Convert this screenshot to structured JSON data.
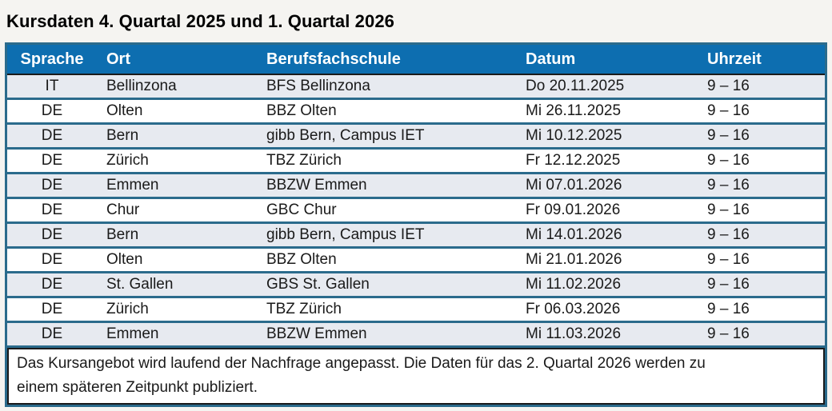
{
  "title": "Kursdaten 4. Quartal 2025 und 1. Quartal 2026",
  "table": {
    "columns": [
      "Sprache",
      "Ort",
      "Berufsfachschule",
      "Datum",
      "Uhrzeit"
    ],
    "rows": [
      [
        "IT",
        "Bellinzona",
        "BFS Bellinzona",
        "Do 20.11.2025",
        "9 – 16"
      ],
      [
        "DE",
        "Olten",
        "BBZ Olten",
        "Mi 26.11.2025",
        "9 – 16"
      ],
      [
        "DE",
        "Bern",
        "gibb Bern, Campus IET",
        "Mi 10.12.2025",
        "9 – 16"
      ],
      [
        "DE",
        "Zürich",
        "TBZ Zürich",
        "Fr 12.12.2025",
        "9 – 16"
      ],
      [
        "DE",
        "Emmen",
        "BBZW Emmen",
        "Mi 07.01.2026",
        "9 – 16"
      ],
      [
        "DE",
        "Chur",
        "GBC Chur",
        "Fr 09.01.2026",
        "9 – 16"
      ],
      [
        "DE",
        "Bern",
        "gibb Bern, Campus IET",
        "Mi 14.01.2026",
        "9 – 16"
      ],
      [
        "DE",
        "Olten",
        "BBZ Olten",
        "Mi 21.01.2026",
        "9 – 16"
      ],
      [
        "DE",
        "St. Gallen",
        "GBS St. Gallen",
        "Mi 11.02.2026",
        "9 – 16"
      ],
      [
        "DE",
        "Zürich",
        "TBZ Zürich",
        "Fr 06.03.2026",
        "9 – 16"
      ],
      [
        "DE",
        "Emmen",
        "BBZW Emmen",
        "Mi 11.03.2026",
        "9 – 16"
      ]
    ],
    "footnote_line1": "Das Kursangebot wird laufend der Nachfrage angepasst. Die Daten für das 2. Quartal 2026 werden zu",
    "footnote_line2": "einem späteren Zeitpunkt publiziert."
  },
  "colors": {
    "header_bg": "#0d6eb0",
    "row_alt_bg": "#e7eaf0",
    "border_teal": "#2b6b8c",
    "border_dark": "#1a1a1a",
    "page_bg": "#f5f4f1"
  }
}
